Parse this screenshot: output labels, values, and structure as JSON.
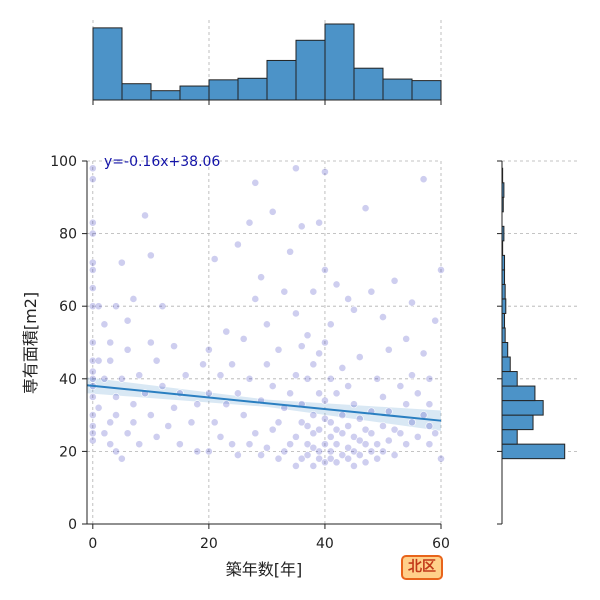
{
  "chart_data": {
    "type": "scatter",
    "xlabel": "築年数[年]",
    "ylabel": "専有面積[m2]",
    "xlim": [
      -1,
      60
    ],
    "ylim": [
      0,
      100
    ],
    "xticks": [
      0,
      20,
      40,
      60
    ],
    "yticks": [
      0,
      20,
      40,
      60,
      80,
      100
    ],
    "grid": true,
    "regression": {
      "equation": "y=-0.16x+38.06",
      "slope": -0.16,
      "intercept": 38.06
    },
    "point_color": "#1f1fb4",
    "line_color": "#2a7fc1",
    "bar_color": "#4c93c8",
    "top_histogram": {
      "bin_edges": [
        0,
        5,
        10,
        15,
        20,
        25,
        30,
        35,
        40,
        45,
        50,
        55,
        60
      ],
      "counts": [
        93,
        21,
        12,
        18,
        26,
        28,
        51,
        77,
        98,
        41,
        27,
        25
      ]
    },
    "right_histogram": {
      "bin_edges": [
        18,
        22,
        26,
        30,
        34,
        38,
        42,
        46,
        50,
        54,
        58,
        62,
        66,
        70,
        74,
        78,
        82,
        86,
        90,
        94,
        98
      ],
      "counts": [
        99,
        24,
        49,
        65,
        52,
        24,
        13,
        9,
        5,
        4,
        6,
        5,
        4,
        4,
        1,
        3,
        0,
        2,
        3,
        1
      ],
      "max_count": 120
    },
    "points": [
      [
        0,
        25
      ],
      [
        0,
        30
      ],
      [
        0,
        35
      ],
      [
        0,
        40
      ],
      [
        0,
        45
      ],
      [
        0,
        50
      ],
      [
        0,
        60
      ],
      [
        0,
        65
      ],
      [
        0,
        70
      ],
      [
        0,
        72
      ],
      [
        0,
        80
      ],
      [
        0,
        83
      ],
      [
        0,
        95
      ],
      [
        0,
        98
      ],
      [
        0,
        38
      ],
      [
        0,
        42
      ],
      [
        0,
        27
      ],
      [
        0,
        23
      ],
      [
        1,
        32
      ],
      [
        1,
        45
      ],
      [
        1,
        60
      ],
      [
        2,
        25
      ],
      [
        2,
        40
      ],
      [
        2,
        55
      ],
      [
        3,
        22
      ],
      [
        3,
        28
      ],
      [
        3,
        45
      ],
      [
        3,
        50
      ],
      [
        4,
        20
      ],
      [
        4,
        30
      ],
      [
        4,
        35
      ],
      [
        4,
        60
      ],
      [
        5,
        72
      ],
      [
        5,
        40
      ],
      [
        5,
        18
      ],
      [
        6,
        25
      ],
      [
        6,
        48
      ],
      [
        6,
        56
      ],
      [
        7,
        62
      ],
      [
        7,
        33
      ],
      [
        7,
        28
      ],
      [
        8,
        41
      ],
      [
        8,
        22
      ],
      [
        9,
        85
      ],
      [
        9,
        36
      ],
      [
        10,
        74
      ],
      [
        10,
        50
      ],
      [
        10,
        30
      ],
      [
        11,
        24
      ],
      [
        11,
        45
      ],
      [
        12,
        60
      ],
      [
        12,
        38
      ],
      [
        13,
        27
      ],
      [
        14,
        32
      ],
      [
        14,
        49
      ],
      [
        15,
        22
      ],
      [
        15,
        36
      ],
      [
        16,
        41
      ],
      [
        17,
        28
      ],
      [
        18,
        20
      ],
      [
        18,
        33
      ],
      [
        19,
        44
      ],
      [
        20,
        20
      ],
      [
        20,
        36
      ],
      [
        20,
        48
      ],
      [
        21,
        28
      ],
      [
        21,
        73
      ],
      [
        22,
        41
      ],
      [
        22,
        24
      ],
      [
        23,
        33
      ],
      [
        23,
        53
      ],
      [
        24,
        22
      ],
      [
        24,
        44
      ],
      [
        25,
        19
      ],
      [
        25,
        36
      ],
      [
        25,
        77
      ],
      [
        26,
        30
      ],
      [
        26,
        51
      ],
      [
        27,
        22
      ],
      [
        27,
        40
      ],
      [
        27,
        83
      ],
      [
        28,
        25
      ],
      [
        28,
        62
      ],
      [
        28,
        94
      ],
      [
        29,
        19
      ],
      [
        29,
        34
      ],
      [
        29,
        68
      ],
      [
        30,
        21
      ],
      [
        30,
        44
      ],
      [
        30,
        55
      ],
      [
        31,
        26
      ],
      [
        31,
        38
      ],
      [
        31,
        86
      ],
      [
        32,
        18
      ],
      [
        32,
        28
      ],
      [
        32,
        48
      ],
      [
        33,
        20
      ],
      [
        33,
        32
      ],
      [
        33,
        64
      ],
      [
        34,
        22
      ],
      [
        34,
        36
      ],
      [
        34,
        75
      ],
      [
        35,
        16
      ],
      [
        35,
        24
      ],
      [
        35,
        41
      ],
      [
        35,
        58
      ],
      [
        35,
        98
      ],
      [
        36,
        18
      ],
      [
        36,
        28
      ],
      [
        36,
        33
      ],
      [
        36,
        49
      ],
      [
        36,
        82
      ],
      [
        37,
        19
      ],
      [
        37,
        22
      ],
      [
        37,
        27
      ],
      [
        37,
        40
      ],
      [
        37,
        52
      ],
      [
        38,
        16
      ],
      [
        38,
        21
      ],
      [
        38,
        25
      ],
      [
        38,
        30
      ],
      [
        38,
        44
      ],
      [
        38,
        64
      ],
      [
        39,
        18
      ],
      [
        39,
        20
      ],
      [
        39,
        26
      ],
      [
        39,
        36
      ],
      [
        39,
        47
      ],
      [
        39,
        83
      ],
      [
        40,
        17
      ],
      [
        40,
        22
      ],
      [
        40,
        29
      ],
      [
        40,
        34
      ],
      [
        40,
        50
      ],
      [
        40,
        70
      ],
      [
        40,
        97
      ],
      [
        41,
        18
      ],
      [
        41,
        20
      ],
      [
        41,
        24
      ],
      [
        41,
        28
      ],
      [
        41,
        40
      ],
      [
        41,
        55
      ],
      [
        42,
        17
      ],
      [
        42,
        22
      ],
      [
        42,
        26
      ],
      [
        42,
        36
      ],
      [
        42,
        66
      ],
      [
        43,
        19
      ],
      [
        43,
        25
      ],
      [
        43,
        30
      ],
      [
        43,
        43
      ],
      [
        44,
        18
      ],
      [
        44,
        21
      ],
      [
        44,
        27
      ],
      [
        44,
        38
      ],
      [
        44,
        62
      ],
      [
        45,
        16
      ],
      [
        45,
        20
      ],
      [
        45,
        24
      ],
      [
        45,
        33
      ],
      [
        45,
        59
      ],
      [
        46,
        19
      ],
      [
        46,
        23
      ],
      [
        46,
        29
      ],
      [
        46,
        46
      ],
      [
        47,
        17
      ],
      [
        47,
        22
      ],
      [
        47,
        26
      ],
      [
        47,
        87
      ],
      [
        48,
        20
      ],
      [
        48,
        25
      ],
      [
        48,
        31
      ],
      [
        48,
        64
      ],
      [
        49,
        18
      ],
      [
        49,
        22
      ],
      [
        49,
        40
      ],
      [
        50,
        20
      ],
      [
        50,
        27
      ],
      [
        50,
        35
      ],
      [
        50,
        57
      ],
      [
        51,
        23
      ],
      [
        51,
        31
      ],
      [
        51,
        48
      ],
      [
        52,
        19
      ],
      [
        52,
        26
      ],
      [
        52,
        67
      ],
      [
        53,
        25
      ],
      [
        53,
        38
      ],
      [
        54,
        22
      ],
      [
        54,
        33
      ],
      [
        54,
        51
      ],
      [
        55,
        28
      ],
      [
        55,
        41
      ],
      [
        55,
        61
      ],
      [
        56,
        24
      ],
      [
        56,
        36
      ],
      [
        57,
        30
      ],
      [
        57,
        47
      ],
      [
        57,
        95
      ],
      [
        58,
        22
      ],
      [
        58,
        27
      ],
      [
        58,
        33
      ],
      [
        58,
        40
      ],
      [
        59,
        25
      ],
      [
        59,
        56
      ],
      [
        60,
        70
      ],
      [
        60,
        18
      ]
    ]
  },
  "badge": {
    "label": "北区"
  }
}
